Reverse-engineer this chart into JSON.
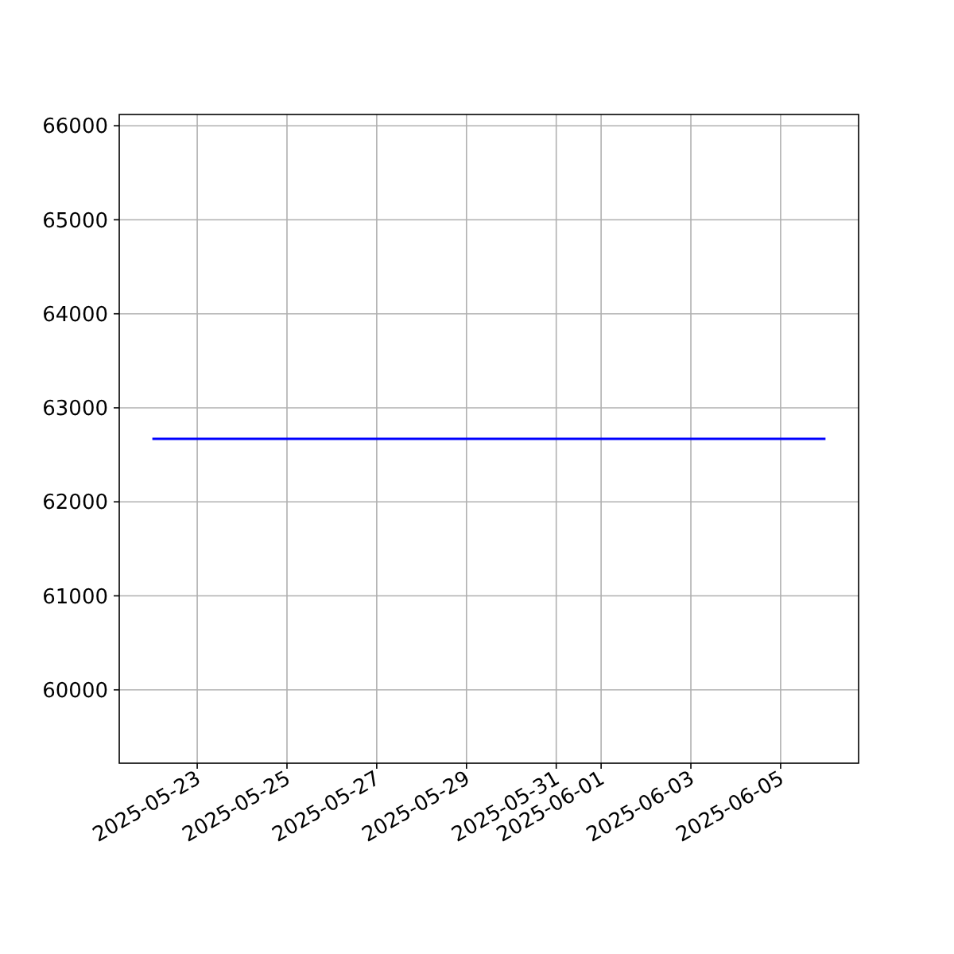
{
  "chart_data": {
    "type": "line",
    "x": [
      "2025-05-22",
      "2025-05-23",
      "2025-05-24",
      "2025-05-25",
      "2025-05-26",
      "2025-05-27",
      "2025-05-28",
      "2025-05-29",
      "2025-05-30",
      "2025-05-31",
      "2025-06-01",
      "2025-06-02",
      "2025-06-03",
      "2025-06-04",
      "2025-06-05",
      "2025-06-06"
    ],
    "series": [
      {
        "color": "#0000ff",
        "values": [
          62670,
          62670,
          62670,
          62670,
          62670,
          62670,
          62670,
          62670,
          62670,
          62670,
          62670,
          62670,
          62670,
          62670,
          62670,
          62670
        ]
      }
    ],
    "xlim": [
      "2025-05-21T06:18",
      "2025-06-06T17:42"
    ],
    "xticks": [
      "2025-05-23",
      "2025-05-25",
      "2025-05-27",
      "2025-05-29",
      "2025-05-31",
      "2025-06-01",
      "2025-06-03",
      "2025-06-05"
    ],
    "ylim": [
      59220,
      66120
    ],
    "yticks": [
      60000,
      61000,
      62000,
      63000,
      64000,
      65000,
      66000
    ],
    "grid": true,
    "marker": "none",
    "line_style": "solid"
  }
}
